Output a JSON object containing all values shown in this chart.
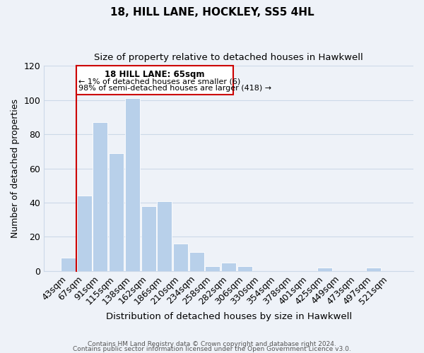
{
  "title": "18, HILL LANE, HOCKLEY, SS5 4HL",
  "subtitle": "Size of property relative to detached houses in Hawkwell",
  "xlabel": "Distribution of detached houses by size in Hawkwell",
  "ylabel": "Number of detached properties",
  "bar_color": "#b8d0ea",
  "highlight_color": "#cc0000",
  "categories": [
    "43sqm",
    "67sqm",
    "91sqm",
    "115sqm",
    "138sqm",
    "162sqm",
    "186sqm",
    "210sqm",
    "234sqm",
    "258sqm",
    "282sqm",
    "306sqm",
    "330sqm",
    "354sqm",
    "378sqm",
    "401sqm",
    "425sqm",
    "449sqm",
    "473sqm",
    "497sqm",
    "521sqm"
  ],
  "values": [
    8,
    44,
    87,
    69,
    101,
    38,
    41,
    16,
    11,
    3,
    5,
    3,
    0,
    0,
    0,
    0,
    2,
    0,
    0,
    2,
    0
  ],
  "ylim": [
    0,
    120
  ],
  "yticks": [
    0,
    20,
    40,
    60,
    80,
    100,
    120
  ],
  "annotation_title": "18 HILL LANE: 65sqm",
  "annotation_line1": "← 1% of detached houses are smaller (6)",
  "annotation_line2": "98% of semi-detached houses are larger (418) →",
  "footer_line1": "Contains HM Land Registry data © Crown copyright and database right 2024.",
  "footer_line2": "Contains public sector information licensed under the Open Government Licence v3.0.",
  "grid_color": "#ccd9e8",
  "background_color": "#eef2f8"
}
